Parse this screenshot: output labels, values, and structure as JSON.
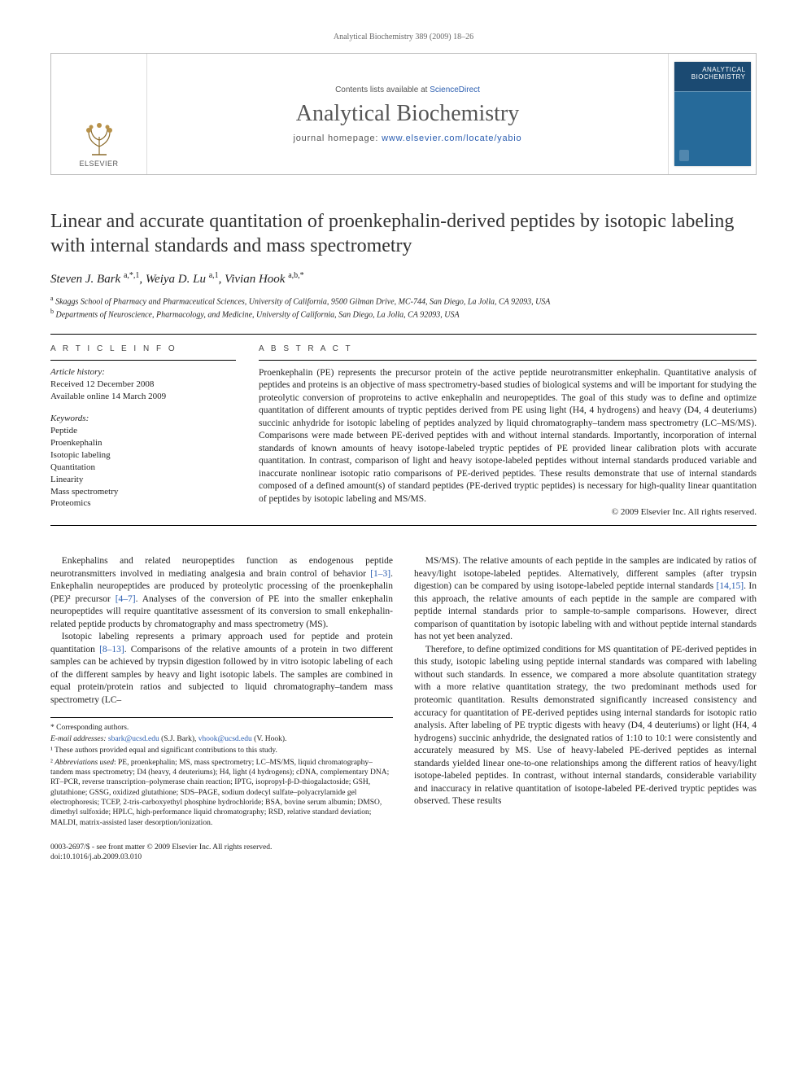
{
  "running_head": "Analytical Biochemistry 389 (2009) 18–26",
  "masthead": {
    "contents_prefix": "Contents lists available at ",
    "contents_link": "ScienceDirect",
    "journal": "Analytical Biochemistry",
    "homepage_prefix": "journal homepage: ",
    "homepage_url": "www.elsevier.com/locate/yabio",
    "publisher_label": "ELSEVIER",
    "cover_title": "ANALYTICAL BIOCHEMISTRY"
  },
  "title": "Linear and accurate quantitation of proenkephalin-derived peptides by isotopic labeling with internal standards and mass spectrometry",
  "authors_html": "Steven J. Bark <sup>a,*,1</sup>, Weiya D. Lu <sup>a,1</sup>, Vivian Hook <sup>a,b,*</sup>",
  "affiliations": [
    "a Skaggs School of Pharmacy and Pharmaceutical Sciences, University of California, 9500 Gilman Drive, MC-744, San Diego, La Jolla, CA 92093, USA",
    "b Departments of Neuroscience, Pharmacology, and Medicine, University of California, San Diego, La Jolla, CA 92093, USA"
  ],
  "article_info": {
    "heading": "A R T I C L E   I N F O",
    "history_head": "Article history:",
    "received": "Received 12 December 2008",
    "online": "Available online 14 March 2009",
    "keywords_head": "Keywords:",
    "keywords": [
      "Peptide",
      "Proenkephalin",
      "Isotopic labeling",
      "Quantitation",
      "Linearity",
      "Mass spectrometry",
      "Proteomics"
    ]
  },
  "abstract": {
    "heading": "A B S T R A C T",
    "text": "Proenkephalin (PE) represents the precursor protein of the active peptide neurotransmitter enkephalin. Quantitative analysis of peptides and proteins is an objective of mass spectrometry-based studies of biological systems and will be important for studying the proteolytic conversion of proproteins to active enkephalin and neuropeptides. The goal of this study was to define and optimize quantitation of different amounts of tryptic peptides derived from PE using light (H4, 4 hydrogens) and heavy (D4, 4 deuteriums) succinic anhydride for isotopic labeling of peptides analyzed by liquid chromatography–tandem mass spectrometry (LC–MS/MS). Comparisons were made between PE-derived peptides with and without internal standards. Importantly, incorporation of internal standards of known amounts of heavy isotope-labeled tryptic peptides of PE provided linear calibration plots with accurate quantitation. In contrast, comparison of light and heavy isotope-labeled peptides without internal standards produced variable and inaccurate nonlinear isotopic ratio comparisons of PE-derived peptides. These results demonstrate that use of internal standards composed of a defined amount(s) of standard peptides (PE-derived tryptic peptides) is necessary for high-quality linear quantitation of peptides by isotopic labeling and MS/MS.",
    "copyright": "© 2009 Elsevier Inc. All rights reserved."
  },
  "body": {
    "p1": "Enkephalins and related neuropeptides function as endogenous peptide neurotransmitters involved in mediating analgesia and brain control of behavior [1–3]. Enkephalin neuropeptides are produced by proteolytic processing of the proenkephalin (PE)² precursor [4–7]. Analyses of the conversion of PE into the smaller enkephalin neuropeptides will require quantitative assessment of its conversion to small enkephalin-related peptide products by chromatography and mass spectrometry (MS).",
    "p2": "Isotopic labeling represents a primary approach used for peptide and protein quantitation [8–13]. Comparisons of the relative amounts of a protein in two different samples can be achieved by trypsin digestion followed by in vitro isotopic labeling of each of the different samples by heavy and light isotopic labels. The samples are combined in equal protein/protein ratios and subjected to liquid chromatography–tandem mass spectrometry (LC–",
    "p3": "MS/MS). The relative amounts of each peptide in the samples are indicated by ratios of heavy/light isotope-labeled peptides. Alternatively, different samples (after trypsin digestion) can be compared by using isotope-labeled peptide internal standards [14,15]. In this approach, the relative amounts of each peptide in the sample are compared with peptide internal standards prior to sample-to-sample comparisons. However, direct comparison of quantitation by isotopic labeling with and without peptide internal standards has not yet been analyzed.",
    "p4": "Therefore, to define optimized conditions for MS quantitation of PE-derived peptides in this study, isotopic labeling using peptide internal standards was compared with labeling without such standards. In essence, we compared a more absolute quantitation strategy with a more relative quantitation strategy, the two predominant methods used for proteomic quantitation. Results demonstrated significantly increased consistency and accuracy for quantitation of PE-derived peptides using internal standards for isotopic ratio analysis. After labeling of PE tryptic digests with heavy (D4, 4 deuteriums) or light (H4, 4 hydrogens) succinic anhydride, the designated ratios of 1:10 to 10:1 were consistently and accurately measured by MS. Use of heavy-labeled PE-derived peptides as internal standards yielded linear one-to-one relationships among the different ratios of heavy/light isotope-labeled peptides. In contrast, without internal standards, considerable variability and inaccuracy in relative quantitation of isotope-labeled PE-derived tryptic peptides was observed. These results"
  },
  "footnotes": {
    "corr": "* Corresponding authors.",
    "email_label": "E-mail addresses: ",
    "email1": "sbark@ucsd.edu",
    "email1_who": " (S.J. Bark), ",
    "email2": "vhook@ucsd.edu",
    "email2_who": " (V. Hook).",
    "note1": "¹ These authors provided equal and significant contributions to this study.",
    "note2": "² Abbreviations used: PE, proenkephalin; MS, mass spectrometry; LC–MS/MS, liquid chromatography–tandem mass spectrometry; D4 (heavy, 4 deuteriums); H4, light (4 hydrogens); cDNA, complementary DNA; RT–PCR, reverse transcription–polymerase chain reaction; IPTG, isopropyl-β-D-thiogalactoside; GSH, glutathione; GSSG, oxidized glutathione; SDS–PAGE, sodium dodecyl sulfate–polyacrylamide gel electrophoresis; TCEP, 2-tris-carboxyethyl phosphine hydrochloride; BSA, bovine serum albumin; DMSO, dimethyl sulfoxide; HPLC, high-performance liquid chromatography; RSD, relative standard deviation; MALDI, matrix-assisted laser desorption/ionization."
  },
  "footer": {
    "line1": "0003-2697/$ - see front matter © 2009 Elsevier Inc. All rights reserved.",
    "line2": "doi:10.1016/j.ab.2009.03.010"
  }
}
